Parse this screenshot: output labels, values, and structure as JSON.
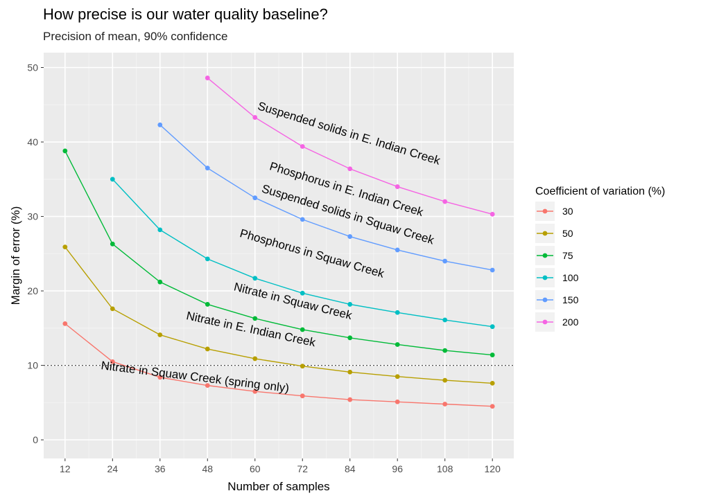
{
  "chart_data": {
    "type": "line",
    "title": "How precise is our water quality baseline?",
    "subtitle": "Precision of mean, 90% confidence",
    "xlabel": "Number of samples",
    "ylabel": "Margin of error (%)",
    "x_ticks": [
      12,
      24,
      36,
      48,
      60,
      72,
      84,
      96,
      108,
      120
    ],
    "y_ticks": [
      0,
      10,
      20,
      30,
      40,
      50
    ],
    "xlim": [
      6.6,
      125.4
    ],
    "ylim": [
      -2.5,
      52
    ],
    "grid": true,
    "reference_line": {
      "y": 10,
      "style": "dotted"
    },
    "legend": {
      "title": "Coefficient of variation (%)",
      "placement": "right"
    },
    "series": [
      {
        "name": "30",
        "color": "#F8766D",
        "x": [
          12,
          24,
          36,
          48,
          60,
          72,
          84,
          96,
          108,
          120
        ],
        "y": [
          15.6,
          10.5,
          8.4,
          7.3,
          6.5,
          5.9,
          5.4,
          5.1,
          4.8,
          4.5
        ]
      },
      {
        "name": "50",
        "color": "#B79F00",
        "x": [
          12,
          24,
          36,
          48,
          60,
          72,
          84,
          96,
          108,
          120
        ],
        "y": [
          25.9,
          17.6,
          14.1,
          12.2,
          10.9,
          9.9,
          9.1,
          8.5,
          8.0,
          7.6
        ]
      },
      {
        "name": "75",
        "color": "#00BA38",
        "x": [
          12,
          24,
          36,
          48,
          60,
          72,
          84,
          96,
          108,
          120
        ],
        "y": [
          38.8,
          26.3,
          21.2,
          18.2,
          16.3,
          14.8,
          13.7,
          12.8,
          12.0,
          11.4
        ]
      },
      {
        "name": "100",
        "color": "#00BFC4",
        "x": [
          24,
          36,
          48,
          60,
          72,
          84,
          96,
          108,
          120
        ],
        "y": [
          35.0,
          28.2,
          24.3,
          21.7,
          19.7,
          18.2,
          17.1,
          16.1,
          15.2
        ]
      },
      {
        "name": "150",
        "color": "#619CFF",
        "x": [
          36,
          48,
          60,
          72,
          84,
          96,
          108,
          120
        ],
        "y": [
          42.3,
          36.5,
          32.5,
          29.6,
          27.3,
          25.5,
          24.0,
          22.8
        ]
      },
      {
        "name": "200",
        "color": "#F564E3",
        "x": [
          48,
          60,
          72,
          84,
          96,
          108,
          120
        ],
        "y": [
          48.6,
          43.3,
          39.4,
          36.4,
          34.0,
          32.0,
          30.3
        ]
      }
    ],
    "annotations": [
      {
        "text": "Suspended solids in E. Indian Creek",
        "x": 60.5,
        "y": 44.4,
        "angle": 17
      },
      {
        "text": "Phosphorus in E. Indian Creek",
        "x": 63.5,
        "y": 36.3,
        "angle": 17
      },
      {
        "text": "Suspended solids in Squaw Creek",
        "x": 61.5,
        "y": 33.3,
        "angle": 17
      },
      {
        "text": "Phosphorus in Squaw Creek",
        "x": 56,
        "y": 27.3,
        "angle": 16
      },
      {
        "text": "Nitrate in Squaw Creek",
        "x": 54.5,
        "y": 20.1,
        "angle": 14
      },
      {
        "text": "Nitrate in E. Indian Creek",
        "x": 42.5,
        "y": 16.2,
        "angle": 12
      },
      {
        "text": "Nitrate in Squaw Creek (spring only)",
        "x": 21,
        "y": 9.5,
        "angle": 7
      }
    ]
  }
}
